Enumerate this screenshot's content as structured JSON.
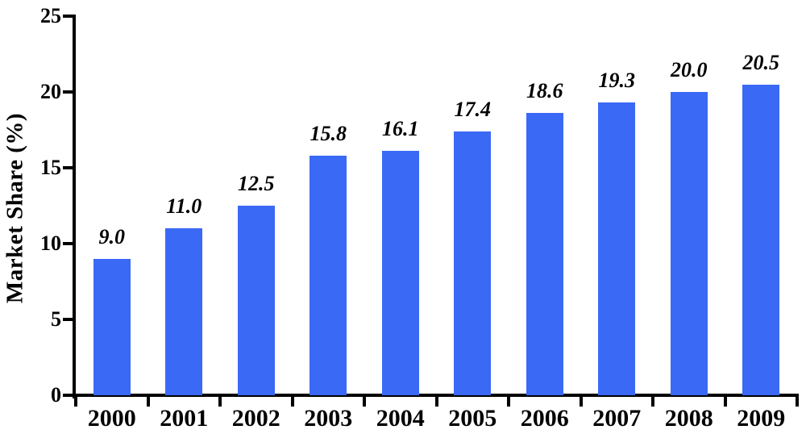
{
  "chart_data": {
    "type": "bar",
    "title": "",
    "xlabel": "",
    "ylabel": "Market Share (%)",
    "categories": [
      "2000",
      "2001",
      "2002",
      "2003",
      "2004",
      "2005",
      "2006",
      "2007",
      "2008",
      "2009"
    ],
    "values": [
      9.0,
      11.0,
      12.5,
      15.8,
      16.1,
      17.4,
      18.6,
      19.3,
      20.0,
      20.5
    ],
    "value_labels": [
      "9.0",
      "11.0",
      "12.5",
      "15.8",
      "16.1",
      "17.4",
      "18.6",
      "19.3",
      "20.0",
      "20.5"
    ],
    "ylim": [
      0,
      25
    ],
    "yticks": [
      "0",
      "5",
      "10",
      "15",
      "20",
      "25"
    ],
    "grid": false,
    "legend": false,
    "bar_color": "#3A69F5",
    "axis_color": "#000000",
    "text_color": "#000000",
    "background": "#FFFFFF"
  }
}
